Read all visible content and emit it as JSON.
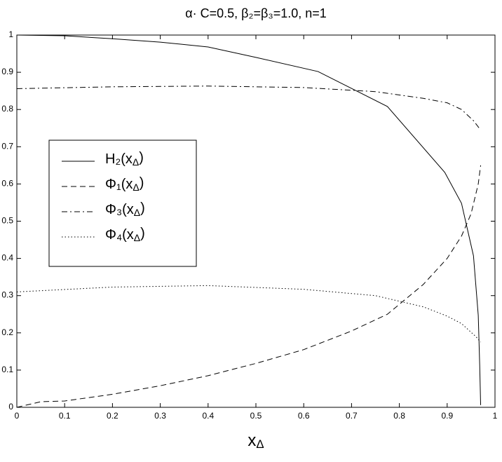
{
  "chart_data": {
    "type": "line",
    "title": "α· C=0.5,  β₂=β₃=1.0,  n=1",
    "x_label": "xΔ",
    "xlim": [
      0,
      1
    ],
    "ylim": [
      0,
      1
    ],
    "xticks": [
      0,
      0.1,
      0.2,
      0.3,
      0.4,
      0.5,
      0.6,
      0.7,
      0.8,
      0.9,
      1
    ],
    "yticks": [
      0,
      0.1,
      0.2,
      0.3,
      0.4,
      0.5,
      0.6,
      0.7,
      0.8,
      0.9,
      1
    ],
    "series": [
      {
        "name": "H₂(xΔ)",
        "color": "#000000",
        "dash": "solid",
        "x": [
          0,
          0.1,
          0.2,
          0.3,
          0.4,
          0.5,
          0.63,
          0.775,
          0.895,
          0.93,
          0.955,
          0.965,
          0.968,
          0.97
        ],
        "values": [
          1,
          0.998,
          0.99,
          0.981,
          0.968,
          0.94,
          0.902,
          0.808,
          0.631,
          0.548,
          0.407,
          0.247,
          0.115,
          0.006
        ]
      },
      {
        "name": "Φ₁(xΔ)",
        "color": "#000000",
        "dash": "dashed",
        "x": [
          0,
          0.05,
          0.1,
          0.2,
          0.3,
          0.4,
          0.5,
          0.6,
          0.7,
          0.775,
          0.85,
          0.9,
          0.93,
          0.95,
          0.965,
          0.97
        ],
        "values": [
          0,
          0.015,
          0.017,
          0.035,
          0.058,
          0.085,
          0.118,
          0.155,
          0.205,
          0.25,
          0.33,
          0.4,
          0.46,
          0.52,
          0.6,
          0.65
        ]
      },
      {
        "name": "Φ₃(xΔ)",
        "color": "#000000",
        "dash": "dashdot",
        "x": [
          0,
          0.2,
          0.4,
          0.6,
          0.75,
          0.85,
          0.9,
          0.93,
          0.955,
          0.97
        ],
        "values": [
          0.856,
          0.861,
          0.863,
          0.859,
          0.848,
          0.83,
          0.818,
          0.8,
          0.77,
          0.745
        ]
      },
      {
        "name": "Φ₄(xΔ)",
        "color": "#000000",
        "dash": "dotted",
        "x": [
          0,
          0.2,
          0.4,
          0.6,
          0.75,
          0.85,
          0.9,
          0.93,
          0.96,
          0.97
        ],
        "values": [
          0.31,
          0.323,
          0.327,
          0.317,
          0.3,
          0.27,
          0.245,
          0.225,
          0.19,
          0.175
        ]
      }
    ]
  }
}
